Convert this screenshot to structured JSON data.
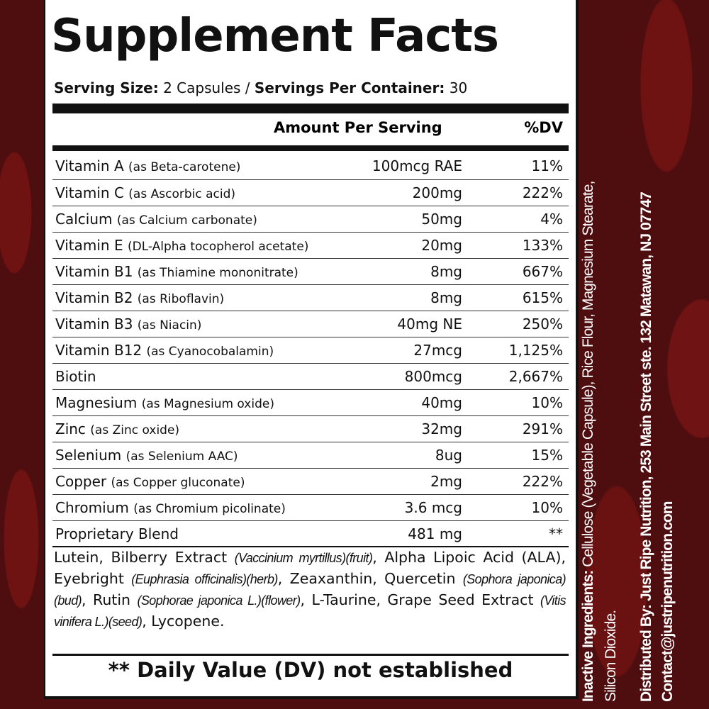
{
  "label": {
    "title": "Supplement Facts",
    "serving_size_label": "Serving Size:",
    "serving_size": "2 Capsules /",
    "servings_label": "Servings Per Container:",
    "servings": "30",
    "amount_header": "Amount Per Serving",
    "dv_header": "%DV",
    "rows": [
      {
        "name": "Vitamin A",
        "source": "(as Beta-carotene)",
        "amount": "100mcg RAE",
        "dv": "11%"
      },
      {
        "name": "Vitamin C",
        "source": "(as Ascorbic acid)",
        "amount": "200mg",
        "dv": "222%"
      },
      {
        "name": "Calcium",
        "source": "(as Calcium carbonate)",
        "amount": "50mg",
        "dv": "4%"
      },
      {
        "name": "Vitamin E",
        "source": "(DL-Alpha tocopherol acetate)",
        "amount": "20mg",
        "dv": "133%"
      },
      {
        "name": "Vitamin B1",
        "source": "(as Thiamine mononitrate)",
        "amount": "8mg",
        "dv": "667%"
      },
      {
        "name": "Vitamin B2",
        "source": "(as Riboflavin)",
        "amount": "8mg",
        "dv": "615%"
      },
      {
        "name": "Vitamin B3",
        "source": "(as Niacin)",
        "amount": "40mg NE",
        "dv": "250%"
      },
      {
        "name": "Vitamin B12",
        "source": "(as Cyanocobalamin)",
        "amount": "27mcg",
        "dv": "1,125%"
      },
      {
        "name": "Biotin",
        "source": "",
        "amount": "800mcg",
        "dv": "2,667%"
      },
      {
        "name": "Magnesium",
        "source": "(as Magnesium oxide)",
        "amount": "40mg",
        "dv": "10%"
      },
      {
        "name": "Zinc",
        "source": "(as Zinc oxide)",
        "amount": "32mg",
        "dv": "291%"
      },
      {
        "name": "Selenium",
        "source": "(as Selenium AAC)",
        "amount": "8ug",
        "dv": "15%"
      },
      {
        "name": "Copper",
        "source": "(as Copper gluconate)",
        "amount": "2mg",
        "dv": "222%"
      },
      {
        "name": "Chromium",
        "source": "(as Chromium picolinate)",
        "amount": "3.6 mcg",
        "dv": "10%"
      },
      {
        "name": "Proprietary Blend",
        "source": "",
        "amount": "481 mg",
        "dv": "**"
      }
    ],
    "blend": [
      "Lutein, Bilberry Extract ",
      "(Vaccinium myrtillus)(fruit)",
      ", Alpha Lipoic Acid (ALA), Eyebright ",
      "(Euphrasia officinalis)(herb)",
      ", Zeaxanthin, Quercetin ",
      "(Sophora japonica)(bud)",
      ", Rutin ",
      "(Sophorae japonica L.)(flower)",
      ", L-Taurine, Grape Seed Extract ",
      "(Vitis vinifera L.)(seed)",
      ", Lycopene."
    ],
    "footnote": "** Daily Value (DV) not established"
  },
  "side": {
    "inactive_label": "Inactive Ingredients:",
    "inactive": " Cellulose (Vegetable Capsule),  Rice Flour, Magnesium Stearate,",
    "inactive2": "Silicon Dioxide.",
    "distributed": "Distributed By: Just Ripe Nutrition, 253 Main Street ste. 132 Matawan, NJ 07747",
    "contact": "Contact@justripenutrition.com"
  }
}
